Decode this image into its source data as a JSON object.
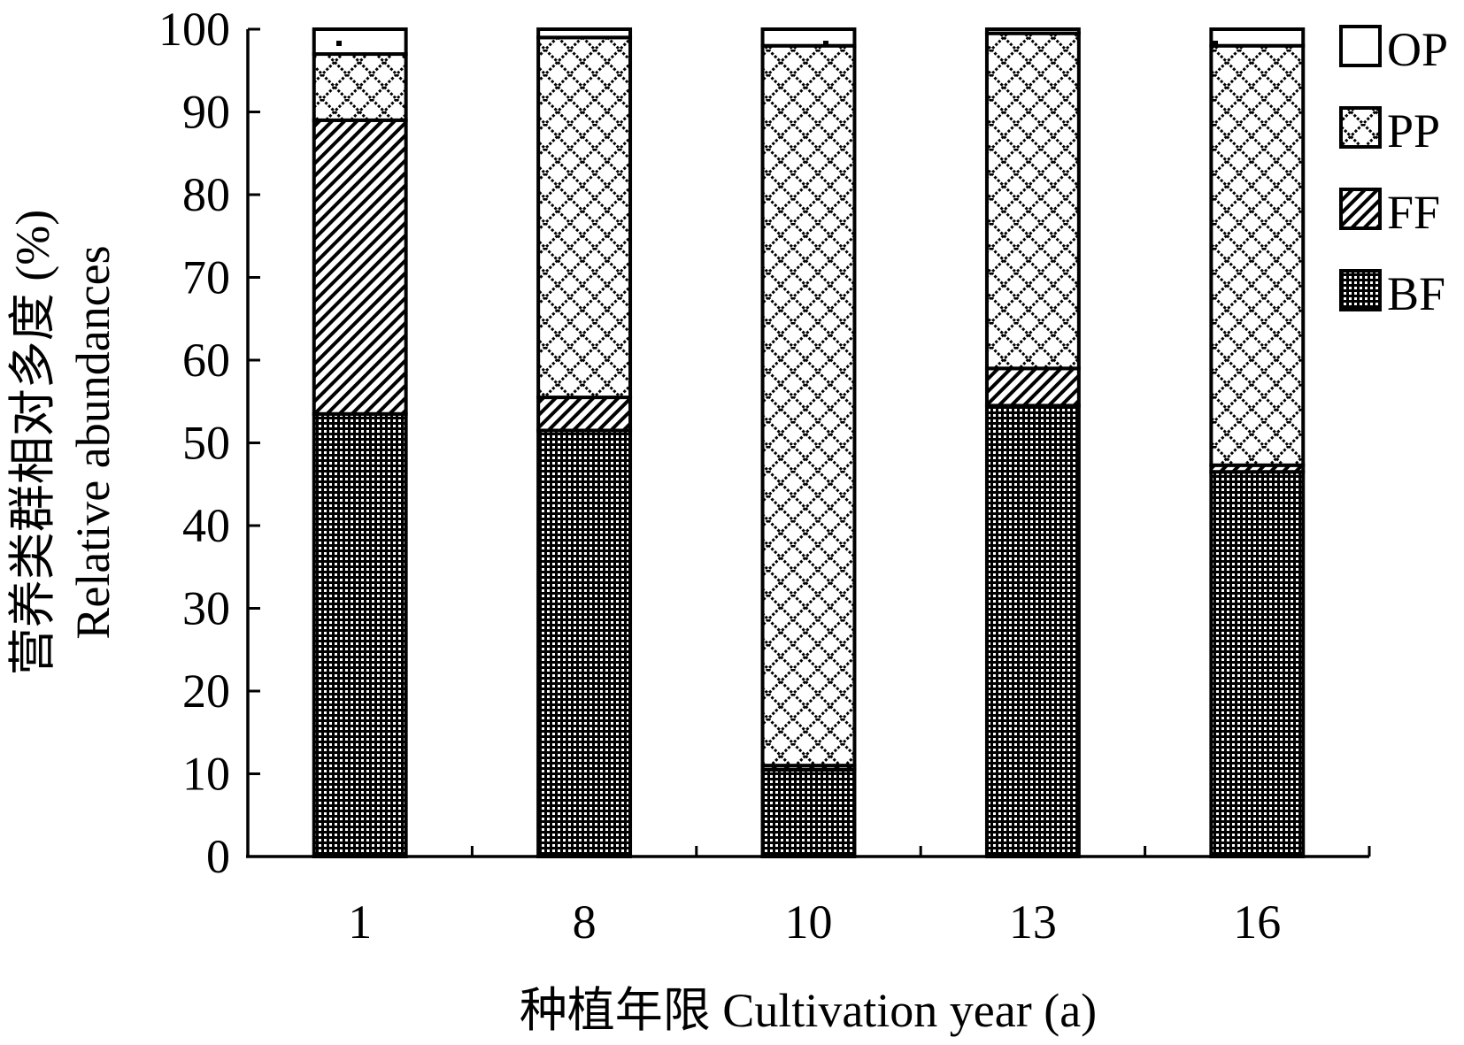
{
  "chart_data": {
    "type": "bar",
    "stacked": true,
    "categories": [
      "1",
      "8",
      "10",
      "13",
      "16"
    ],
    "series": [
      {
        "name": "BF",
        "values": [
          53.5,
          51.5,
          10.5,
          54.5,
          46.5
        ],
        "pattern": "dense-grid"
      },
      {
        "name": "FF",
        "values": [
          35.5,
          4.0,
          0.5,
          4.5,
          0.8
        ],
        "pattern": "diagonal"
      },
      {
        "name": "PP",
        "values": [
          8.0,
          43.5,
          87.0,
          40.5,
          50.7
        ],
        "pattern": "diamond"
      },
      {
        "name": "OP",
        "values": [
          3.0,
          1.0,
          2.0,
          0.5,
          2.0
        ],
        "pattern": "dotted"
      }
    ],
    "ylim": [
      0,
      100
    ],
    "yticks": [
      "0",
      "10",
      "20",
      "30",
      "40",
      "50",
      "60",
      "70",
      "80",
      "90",
      "100"
    ],
    "ylabel_cn": "营养类群相对多度 (%)",
    "ylabel_en": "Relative abundances",
    "xlabel": "种植年限 Cultivation year (a)",
    "legend_position": "top-right",
    "grid": false
  }
}
